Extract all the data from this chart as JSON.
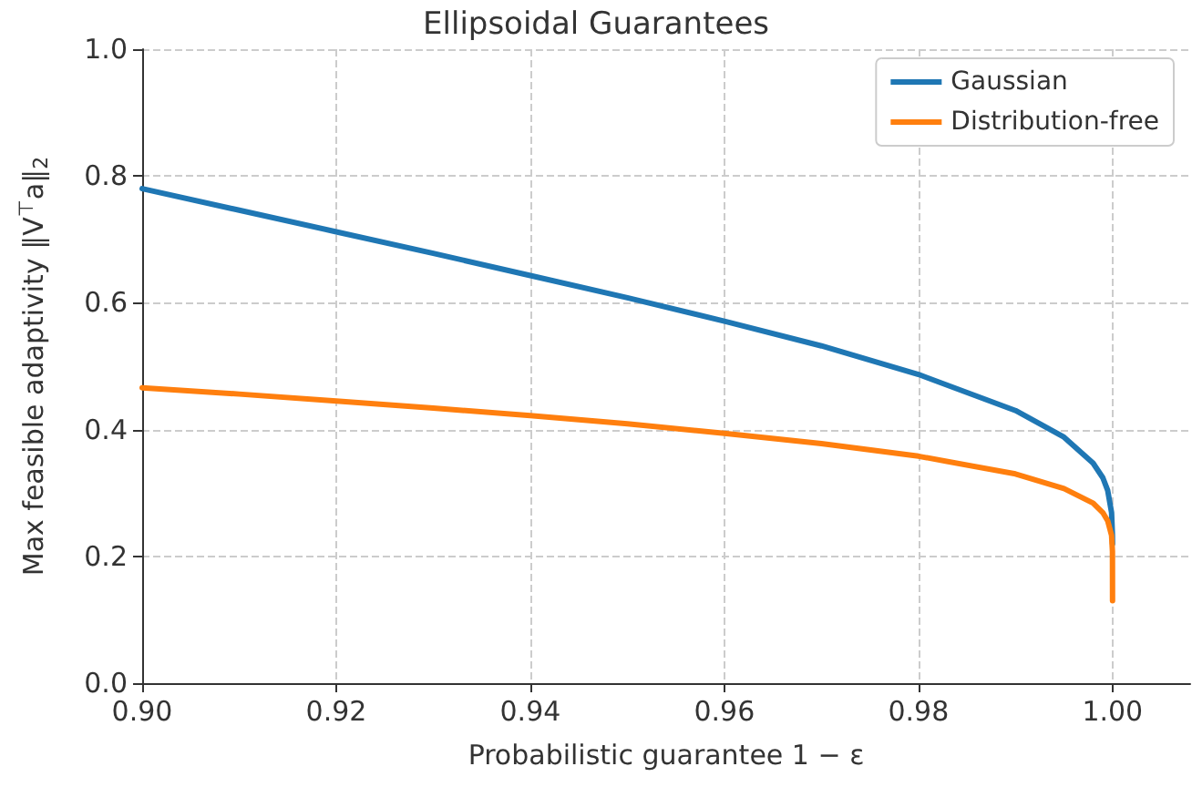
{
  "chart_data": {
    "type": "line",
    "title": "Ellipsoidal Guarantees",
    "xlabel": "Probabilistic guarantee 1 − ε",
    "ylabel": "Max feasible adaptivity ‖V$^{⊤}$a‖$_{2}$",
    "x": [
      0.9,
      0.91,
      0.92,
      0.93,
      0.94,
      0.95,
      0.96,
      0.97,
      0.98,
      0.99,
      0.995,
      0.998,
      0.999,
      0.9995,
      0.9999,
      0.99999,
      1.0
    ],
    "series": [
      {
        "name": "Gaussian",
        "color": "#1f77b4",
        "values": [
          0.78,
          0.746,
          0.712,
          0.678,
          0.643,
          0.608,
          0.571,
          0.532,
          0.487,
          0.43,
          0.388,
          0.347,
          0.324,
          0.304,
          0.269,
          0.234,
          0.22
        ]
      },
      {
        "name": "Distribution-free",
        "color": "#ff7f0e",
        "values": [
          0.466,
          0.456,
          0.445,
          0.434,
          0.422,
          0.409,
          0.394,
          0.378,
          0.358,
          0.33,
          0.307,
          0.284,
          0.269,
          0.256,
          0.233,
          0.208,
          0.13
        ]
      }
    ],
    "xlim": [
      0.9,
      1.008
    ],
    "xticks": [
      {
        "value": 0.9,
        "label": "0.90"
      },
      {
        "value": 0.92,
        "label": "0.92"
      },
      {
        "value": 0.94,
        "label": "0.94"
      },
      {
        "value": 0.96,
        "label": "0.96"
      },
      {
        "value": 0.98,
        "label": "0.98"
      },
      {
        "value": 1.0,
        "label": "1.00"
      }
    ],
    "ylim": [
      0,
      1
    ],
    "yticks": [
      {
        "value": 0,
        "label": "0.0"
      },
      {
        "value": 0.2,
        "label": "0.2"
      },
      {
        "value": 0.4,
        "label": "0.4"
      },
      {
        "value": 0.6,
        "label": "0.6"
      },
      {
        "value": 0.8,
        "label": "0.8"
      },
      {
        "value": 1,
        "label": "1.0"
      }
    ],
    "grid": true,
    "legend": "top right",
    "marker": "none",
    "line_style": "solid"
  }
}
